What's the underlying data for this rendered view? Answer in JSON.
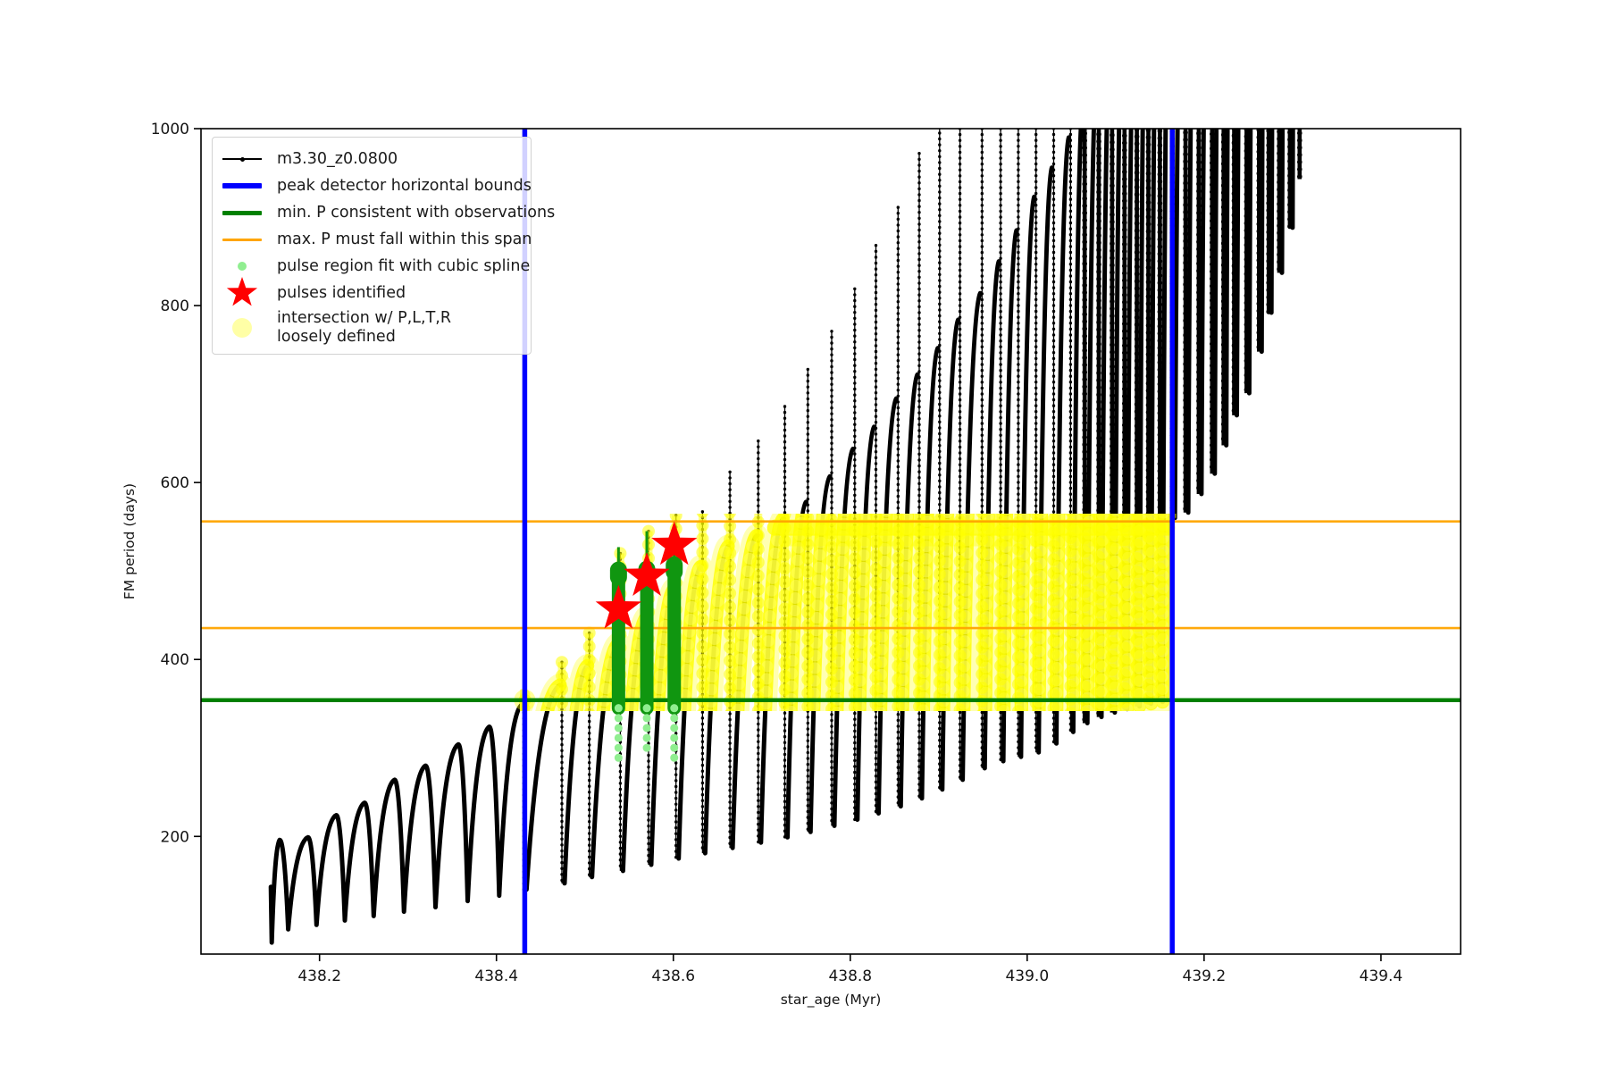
{
  "window": {
    "background": "#ffffff"
  },
  "colors": {
    "curve": "#000000",
    "peak_bounds": "#0000ff",
    "min_p_line": "#008000",
    "max_p_span": "#ffa500",
    "spline_dense": "#109610",
    "spline_light": "#90ee90",
    "pulse_star": "#ff0000",
    "intersection": "#ffff00"
  },
  "chart_data": {
    "type": "line",
    "title": "",
    "xlabel": "star_age (Myr)",
    "ylabel": "FM period (days)",
    "xlim": [
      438.066,
      439.49
    ],
    "ylim": [
      67,
      1000
    ],
    "grid": false,
    "legend_position": "upper left",
    "xticks": [
      "438.2",
      "438.4",
      "438.6",
      "438.8",
      "439.0",
      "439.2",
      "439.4"
    ],
    "xtick_values": [
      438.2,
      438.4,
      438.6,
      438.8,
      439.0,
      439.2,
      439.4
    ],
    "yticks": [
      "200",
      "400",
      "600",
      "800",
      "1000"
    ],
    "ytick_values": [
      200,
      400,
      600,
      800,
      1000
    ],
    "series": [
      {
        "name": "m3.30_z0.0800",
        "type": "pulse_train",
        "color": "#000000",
        "comment": "pulses as [star_age_Myr, arc_peak_days, spike_top_days, valley_after_days]; spike_top>1000 means clipped at plot top",
        "start": {
          "x": 438.145,
          "y": 143,
          "first_valley": 80
        },
        "pulses": [
          [
            438.155,
            196,
            199,
            95
          ],
          [
            438.187,
            199,
            202,
            100
          ],
          [
            438.219,
            224,
            227,
            105
          ],
          [
            438.251,
            238,
            241,
            110
          ],
          [
            438.285,
            264,
            267,
            115
          ],
          [
            438.32,
            280,
            283,
            120
          ],
          [
            438.357,
            304,
            307,
            127
          ],
          [
            438.392,
            324,
            330,
            133
          ],
          [
            438.429,
            349,
            360,
            140
          ],
          [
            438.472,
            371,
            397,
            147
          ],
          [
            438.503,
            393,
            430,
            154
          ],
          [
            438.538,
            418,
            520,
            161
          ],
          [
            438.57,
            448,
            545,
            168
          ],
          [
            438.601,
            480,
            563,
            175
          ],
          [
            438.631,
            505,
            567,
            181
          ],
          [
            438.662,
            528,
            612,
            187
          ],
          [
            438.694,
            540,
            647,
            193
          ],
          [
            438.724,
            559,
            686,
            199
          ],
          [
            438.75,
            578,
            728,
            205
          ],
          [
            438.777,
            607,
            771,
            212
          ],
          [
            438.803,
            638,
            819,
            219
          ],
          [
            438.827,
            663,
            868,
            226
          ],
          [
            438.852,
            695,
            911,
            234
          ],
          [
            438.876,
            722,
            972,
            243
          ],
          [
            438.899,
            752,
            1015,
            253
          ],
          [
            438.922,
            784,
            1060,
            264
          ],
          [
            438.947,
            814,
            1100,
            277
          ],
          [
            438.968,
            850,
            1140,
            285
          ],
          [
            438.988,
            885,
            1180,
            290
          ],
          [
            439.008,
            923,
            1220,
            295
          ],
          [
            439.028,
            956,
            1260,
            305
          ],
          [
            439.047,
            990,
            1300,
            318
          ],
          [
            439.063,
            1030,
            1330,
            328
          ],
          [
            439.079,
            1070,
            1370,
            335
          ],
          [
            439.094,
            1110,
            1410,
            340
          ],
          [
            439.108,
            1150,
            1450,
            344
          ],
          [
            439.122,
            1190,
            1490,
            347
          ],
          [
            439.135,
            1230,
            1530,
            350
          ],
          [
            439.148,
            1270,
            1570,
            352
          ],
          [
            439.162,
            1310,
            1610,
            560
          ],
          [
            439.177,
            1350,
            1650,
            566
          ],
          [
            439.192,
            1390,
            1690,
            587
          ],
          [
            439.207,
            1430,
            1730,
            610
          ],
          [
            439.22,
            1470,
            1770,
            642
          ],
          [
            439.232,
            1510,
            1810,
            676
          ],
          [
            439.246,
            1550,
            1850,
            701
          ],
          [
            439.26,
            1590,
            1890,
            748
          ],
          [
            439.271,
            1630,
            1930,
            792
          ],
          [
            439.283,
            1670,
            1970,
            837
          ],
          [
            439.295,
            1710,
            2010,
            888
          ],
          [
            439.306,
            1750,
            2050,
            943
          ]
        ]
      },
      {
        "name": "peak detector horizontal bounds",
        "type": "vlines",
        "color": "#0000ff",
        "x": [
          438.432,
          439.164
        ]
      },
      {
        "name": "min. P consistent with observations",
        "type": "hline",
        "color": "#008000",
        "y": 354
      },
      {
        "name": "max. P must fall within this span",
        "type": "hlines",
        "color": "#ffa500",
        "y": [
          556,
          435.5
        ]
      },
      {
        "name": "pulse region fit with cubic spline",
        "type": "scatter_columns",
        "dense_color": "#109610",
        "light_color": "#90ee90",
        "columns": [
          {
            "x": 438.538,
            "dense": [
              345,
              499
            ],
            "spike_top": 527,
            "tail": [
              278,
              345
            ]
          },
          {
            "x": 438.57,
            "dense": [
              345,
              500
            ],
            "spike_top": 545,
            "tail": [
              297,
              345
            ]
          },
          {
            "x": 438.601,
            "dense": [
              345,
              505
            ],
            "spike_top": 552,
            "tail": [
              282,
              345
            ]
          }
        ]
      },
      {
        "name": "pulses identified",
        "type": "stars",
        "color": "#ff0000",
        "points": [
          [
            438.538,
            457
          ],
          [
            438.57,
            494
          ],
          [
            438.601,
            529
          ]
        ]
      },
      {
        "name": "intersection w/ P,L,T,R loosely defined",
        "type": "band",
        "color": "#ffff00",
        "x_range": [
          438.433,
          439.168
        ],
        "y_range": [
          345,
          561
        ],
        "lone_point": [
          438.432,
          354
        ]
      }
    ]
  },
  "legend": {
    "entries": [
      {
        "label": "m3.30_z0.0800"
      },
      {
        "label": "peak detector horizontal bounds"
      },
      {
        "label": "min. P consistent with observations"
      },
      {
        "label": "max. P must fall within this span"
      },
      {
        "label": "pulse region fit with cubic spline"
      },
      {
        "label": "pulses identified"
      },
      {
        "label": "intersection w/ P,L,T,R",
        "label2": "loosely defined"
      }
    ]
  }
}
